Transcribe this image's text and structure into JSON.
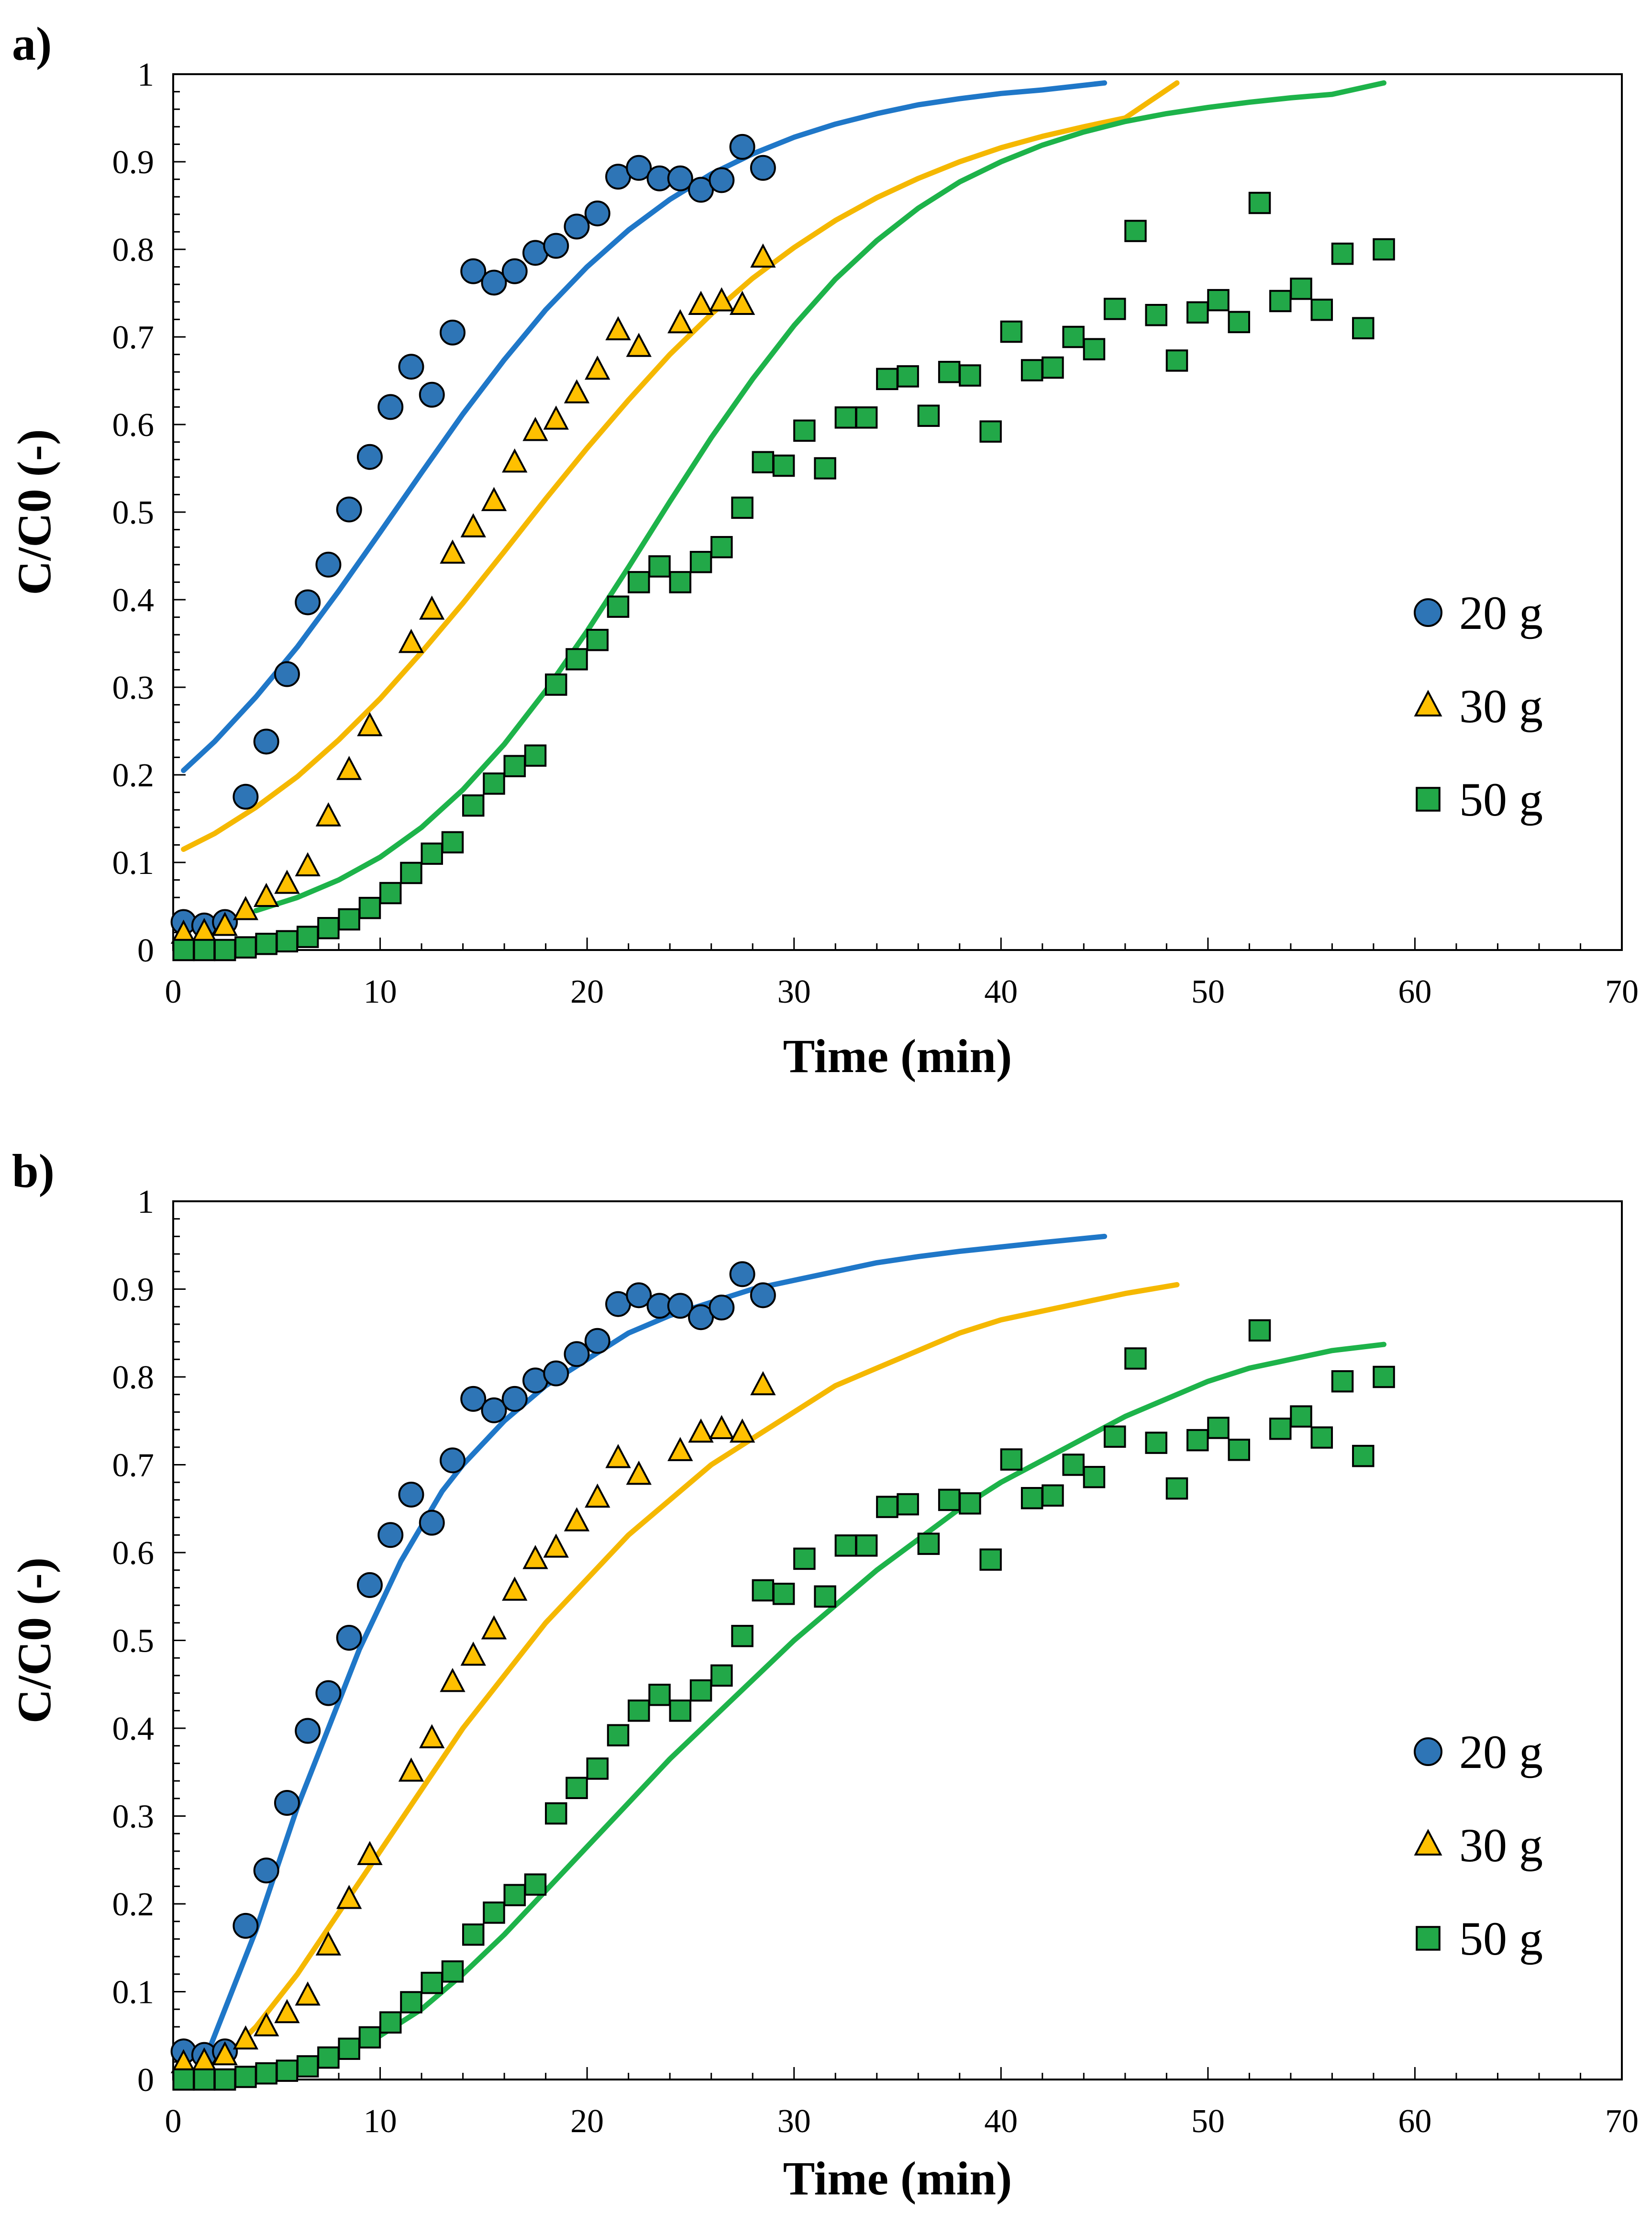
{
  "chart_data": [
    {
      "type": "scatter",
      "panel_label": "a)",
      "xlabel": "Time (min)",
      "ylabel": "C/C0 (-)",
      "xlim": [
        0,
        70
      ],
      "ylim": [
        0,
        1
      ],
      "xticks": [
        "0",
        "10",
        "20",
        "30",
        "40",
        "50",
        "60",
        "70"
      ],
      "yticks": [
        "0",
        "0.1",
        "0.2",
        "0.3",
        "0.4",
        "0.5",
        "0.6",
        "0.7",
        "0.8",
        "0.9",
        "1"
      ],
      "legend_position": "right",
      "series": [
        {
          "name": "20 g",
          "marker": "circle",
          "color": "#2E75B6",
          "line_color": "#1F77C8",
          "x": [
            0.5,
            1.5,
            2.5,
            3.5,
            4.5,
            5.5,
            6.5,
            7.5,
            8.5,
            9.5,
            10.5,
            11.5,
            12.5,
            13.5,
            14.5,
            15.5,
            16.5,
            17.5,
            18.5,
            19.5,
            20.5,
            21.5,
            22.5,
            23.5,
            24.5,
            25.5,
            26.5,
            27.5,
            28.5
          ],
          "y": [
            0.032,
            0.028,
            0.032,
            0.175,
            0.238,
            0.315,
            0.397,
            0.44,
            0.503,
            0.563,
            0.62,
            0.666,
            0.634,
            0.705,
            0.775,
            0.762,
            0.775,
            0.796,
            0.804,
            0.826,
            0.841,
            0.883,
            0.893,
            0.881,
            0.881,
            0.868,
            0.879,
            0.917,
            0.893
          ],
          "fit_x": [
            0.5,
            2,
            4,
            6,
            8,
            10,
            12,
            14,
            16,
            18,
            20,
            22,
            24,
            26,
            28,
            30,
            32,
            34,
            36,
            38,
            40,
            42,
            45
          ],
          "fit_y": [
            0.205,
            0.238,
            0.289,
            0.346,
            0.41,
            0.477,
            0.545,
            0.612,
            0.674,
            0.731,
            0.78,
            0.822,
            0.857,
            0.886,
            0.909,
            0.928,
            0.943,
            0.955,
            0.965,
            0.972,
            0.978,
            0.982,
            0.99
          ]
        },
        {
          "name": "30 g",
          "marker": "triangle",
          "color": "#FFC000",
          "line_color": "#F5B800",
          "x": [
            0.5,
            1.5,
            2.5,
            3.5,
            4.5,
            5.5,
            6.5,
            7.5,
            8.5,
            9.5,
            11.5,
            12.5,
            13.5,
            14.5,
            15.5,
            16.5,
            17.5,
            18.5,
            19.5,
            20.5,
            21.5,
            22.5,
            24.5,
            25.5,
            26.5,
            27.5,
            28.5
          ],
          "y": [
            0.018,
            0.02,
            0.027,
            0.045,
            0.06,
            0.075,
            0.095,
            0.152,
            0.205,
            0.255,
            0.35,
            0.388,
            0.452,
            0.482,
            0.512,
            0.556,
            0.592,
            0.605,
            0.635,
            0.662,
            0.707,
            0.688,
            0.715,
            0.736,
            0.74,
            0.736,
            0.79
          ],
          "fit_x": [
            0.5,
            2,
            4,
            6,
            8,
            10,
            12,
            14,
            16,
            18,
            20,
            22,
            24,
            26,
            28,
            30,
            32,
            34,
            36,
            38,
            40,
            42,
            44,
            46,
            48.5
          ],
          "fit_y": [
            0.115,
            0.133,
            0.163,
            0.198,
            0.24,
            0.287,
            0.34,
            0.396,
            0.455,
            0.515,
            0.573,
            0.628,
            0.68,
            0.726,
            0.767,
            0.802,
            0.833,
            0.859,
            0.881,
            0.9,
            0.916,
            0.929,
            0.94,
            0.95,
            0.99
          ]
        },
        {
          "name": "50 g",
          "marker": "square",
          "color": "#22A848",
          "line_color": "#1DB34A",
          "x": [
            0.5,
            1.5,
            2.5,
            3.5,
            4.5,
            5.5,
            6.5,
            7.5,
            8.5,
            9.5,
            10.5,
            11.5,
            12.5,
            13.5,
            14.5,
            15.5,
            16.5,
            17.5,
            18.5,
            19.5,
            20.5,
            21.5,
            22.5,
            23.5,
            24.5,
            25.5,
            26.5,
            27.5,
            28.5,
            29.5,
            30.5,
            31.5,
            32.5,
            33.5,
            34.5,
            35.5,
            36.5,
            37.5,
            38.5,
            39.5,
            40.5,
            41.5,
            42.5,
            43.5,
            44.5,
            45.5,
            46.5,
            47.5,
            48.5,
            49.5,
            50.5,
            51.5,
            52.5,
            53.5,
            54.5,
            55.5,
            56.5,
            57.5,
            58.5
          ],
          "y": [
            0.0,
            0.0,
            0.0,
            0.003,
            0.007,
            0.01,
            0.015,
            0.025,
            0.035,
            0.048,
            0.065,
            0.088,
            0.11,
            0.123,
            0.165,
            0.19,
            0.21,
            0.222,
            0.303,
            0.332,
            0.354,
            0.392,
            0.42,
            0.438,
            0.42,
            0.443,
            0.46,
            0.505,
            0.557,
            0.553,
            0.593,
            0.55,
            0.608,
            0.608,
            0.652,
            0.655,
            0.61,
            0.66,
            0.656,
            0.592,
            0.706,
            0.662,
            0.665,
            0.7,
            0.686,
            0.732,
            0.821,
            0.725,
            0.673,
            0.728,
            0.742,
            0.717,
            0.853,
            0.741,
            0.755,
            0.731,
            0.795,
            0.71,
            0.8
          ],
          "fit_x": [
            4,
            6,
            8,
            10,
            12,
            14,
            16,
            18,
            20,
            22,
            24,
            26,
            28,
            30,
            32,
            34,
            36,
            38,
            40,
            42,
            44,
            46,
            48,
            50,
            52,
            54,
            56,
            58.5
          ],
          "fit_y": [
            0.045,
            0.06,
            0.08,
            0.106,
            0.14,
            0.183,
            0.235,
            0.296,
            0.364,
            0.437,
            0.512,
            0.585,
            0.652,
            0.713,
            0.766,
            0.81,
            0.847,
            0.877,
            0.9,
            0.919,
            0.934,
            0.946,
            0.955,
            0.962,
            0.968,
            0.973,
            0.977,
            0.99
          ]
        }
      ]
    },
    {
      "type": "scatter",
      "panel_label": "b)",
      "xlabel": "Time (min)",
      "ylabel": "C/C0 (-)",
      "xlim": [
        0,
        70
      ],
      "ylim": [
        0,
        1
      ],
      "xticks": [
        "0",
        "10",
        "20",
        "30",
        "40",
        "50",
        "60",
        "70"
      ],
      "yticks": [
        "0",
        "0.1",
        "0.2",
        "0.3",
        "0.4",
        "0.5",
        "0.6",
        "0.7",
        "0.8",
        "0.9",
        "1"
      ],
      "legend_position": "right",
      "series": [
        {
          "name": "20 g",
          "marker": "circle",
          "color": "#2E75B6",
          "line_color": "#1F77C8",
          "x": [
            0.5,
            1.5,
            2.5,
            3.5,
            4.5,
            5.5,
            6.5,
            7.5,
            8.5,
            9.5,
            10.5,
            11.5,
            12.5,
            13.5,
            14.5,
            15.5,
            16.5,
            17.5,
            18.5,
            19.5,
            20.5,
            21.5,
            22.5,
            23.5,
            24.5,
            25.5,
            26.5,
            27.5,
            28.5
          ],
          "y": [
            0.032,
            0.028,
            0.032,
            0.175,
            0.238,
            0.315,
            0.397,
            0.44,
            0.503,
            0.563,
            0.62,
            0.666,
            0.634,
            0.705,
            0.775,
            0.762,
            0.775,
            0.796,
            0.804,
            0.826,
            0.841,
            0.883,
            0.893,
            0.881,
            0.881,
            0.868,
            0.879,
            0.917,
            0.893
          ],
          "fit_x": [
            1.5,
            2,
            3,
            4,
            5,
            6,
            7,
            8,
            9,
            10,
            11,
            12,
            13,
            14,
            16,
            18,
            20,
            22,
            24,
            26,
            28,
            30,
            32,
            34,
            36,
            38,
            40,
            42,
            45
          ],
          "fit_y": [
            0.02,
            0.05,
            0.11,
            0.17,
            0.24,
            0.31,
            0.37,
            0.43,
            0.49,
            0.54,
            0.59,
            0.63,
            0.67,
            0.7,
            0.75,
            0.79,
            0.82,
            0.85,
            0.87,
            0.885,
            0.9,
            0.91,
            0.92,
            0.93,
            0.937,
            0.943,
            0.948,
            0.953,
            0.96
          ]
        },
        {
          "name": "30 g",
          "marker": "triangle",
          "color": "#FFC000",
          "line_color": "#F5B800",
          "x": [
            0.5,
            1.5,
            2.5,
            3.5,
            4.5,
            5.5,
            6.5,
            7.5,
            8.5,
            9.5,
            11.5,
            12.5,
            13.5,
            14.5,
            15.5,
            16.5,
            17.5,
            18.5,
            19.5,
            20.5,
            21.5,
            22.5,
            24.5,
            25.5,
            26.5,
            27.5,
            28.5
          ],
          "y": [
            0.018,
            0.02,
            0.027,
            0.045,
            0.06,
            0.075,
            0.095,
            0.152,
            0.205,
            0.255,
            0.35,
            0.388,
            0.452,
            0.482,
            0.512,
            0.556,
            0.592,
            0.605,
            0.635,
            0.662,
            0.707,
            0.688,
            0.715,
            0.736,
            0.74,
            0.736,
            0.79
          ],
          "fit_x": [
            2.5,
            4,
            6,
            8,
            10,
            12,
            14,
            16,
            18,
            20,
            22,
            24,
            26,
            28,
            30,
            32,
            34,
            36,
            38,
            40,
            42,
            44,
            46,
            48.5
          ],
          "fit_y": [
            0.025,
            0.06,
            0.12,
            0.19,
            0.26,
            0.33,
            0.4,
            0.46,
            0.52,
            0.57,
            0.62,
            0.66,
            0.7,
            0.73,
            0.76,
            0.79,
            0.81,
            0.83,
            0.85,
            0.865,
            0.875,
            0.885,
            0.895,
            0.905
          ]
        },
        {
          "name": "50 g",
          "marker": "square",
          "color": "#22A848",
          "line_color": "#1DB34A",
          "x": [
            0.5,
            1.5,
            2.5,
            3.5,
            4.5,
            5.5,
            6.5,
            7.5,
            8.5,
            9.5,
            10.5,
            11.5,
            12.5,
            13.5,
            14.5,
            15.5,
            16.5,
            17.5,
            18.5,
            19.5,
            20.5,
            21.5,
            22.5,
            23.5,
            24.5,
            25.5,
            26.5,
            27.5,
            28.5,
            29.5,
            30.5,
            31.5,
            32.5,
            33.5,
            34.5,
            35.5,
            36.5,
            37.5,
            38.5,
            39.5,
            40.5,
            41.5,
            42.5,
            43.5,
            44.5,
            45.5,
            46.5,
            47.5,
            48.5,
            49.5,
            50.5,
            51.5,
            52.5,
            53.5,
            54.5,
            55.5,
            56.5,
            57.5,
            58.5
          ],
          "y": [
            0.0,
            0.0,
            0.0,
            0.003,
            0.007,
            0.01,
            0.015,
            0.025,
            0.035,
            0.048,
            0.065,
            0.088,
            0.11,
            0.123,
            0.165,
            0.19,
            0.21,
            0.222,
            0.303,
            0.332,
            0.354,
            0.392,
            0.42,
            0.438,
            0.42,
            0.443,
            0.46,
            0.505,
            0.557,
            0.553,
            0.593,
            0.55,
            0.608,
            0.608,
            0.652,
            0.655,
            0.61,
            0.66,
            0.656,
            0.592,
            0.706,
            0.662,
            0.665,
            0.7,
            0.686,
            0.732,
            0.821,
            0.725,
            0.673,
            0.728,
            0.742,
            0.717,
            0.853,
            0.741,
            0.755,
            0.731,
            0.795,
            0.71,
            0.8
          ],
          "fit_x": [
            6,
            8,
            10,
            12,
            14,
            16,
            18,
            20,
            22,
            24,
            26,
            28,
            30,
            32,
            34,
            36,
            38,
            40,
            42,
            44,
            46,
            48,
            50,
            52,
            54,
            56,
            58.5
          ],
          "fit_y": [
            0.01,
            0.03,
            0.05,
            0.08,
            0.12,
            0.165,
            0.215,
            0.265,
            0.315,
            0.365,
            0.41,
            0.455,
            0.5,
            0.54,
            0.58,
            0.615,
            0.65,
            0.68,
            0.705,
            0.73,
            0.755,
            0.775,
            0.795,
            0.81,
            0.82,
            0.83,
            0.837
          ]
        }
      ]
    }
  ]
}
